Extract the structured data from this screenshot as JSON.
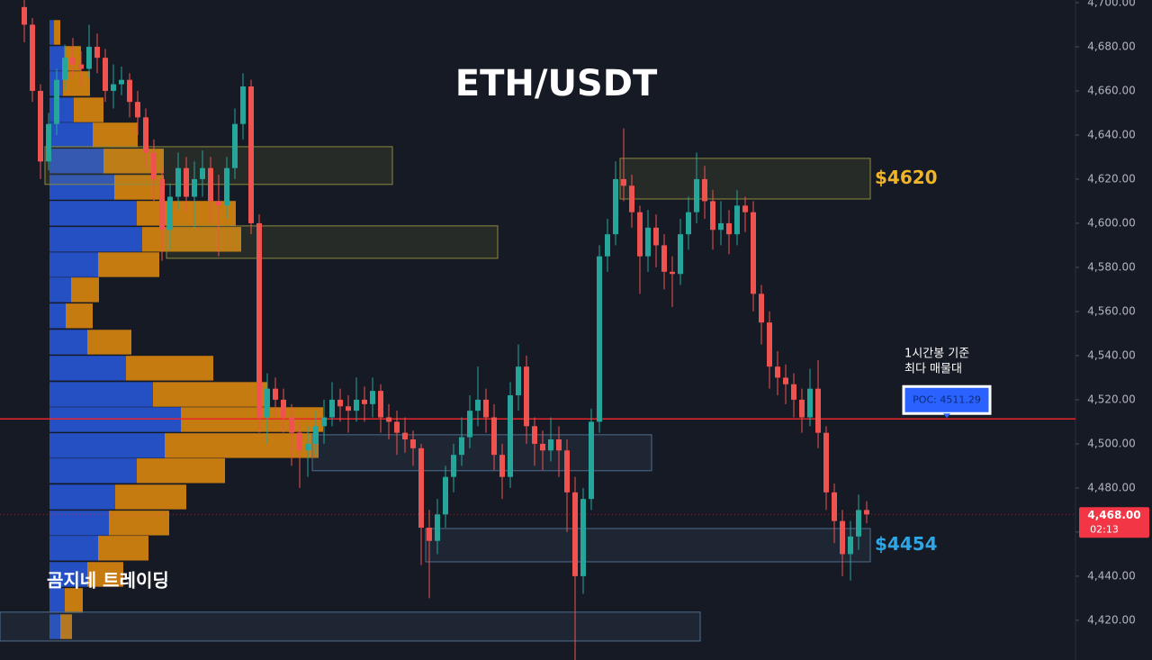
{
  "chart_data": {
    "type": "candlestick",
    "title": "ETH/USDT",
    "watermark": "곰지네 트레이딩",
    "ylim": [
      4402,
      4701.2
    ],
    "yticks": [
      {
        "value": 4420,
        "label": "4,420.00"
      },
      {
        "value": 4440,
        "label": "4,440.00"
      },
      {
        "value": 4460,
        "label": "4,460.00"
      },
      {
        "value": 4480,
        "label": "4,480.00"
      },
      {
        "value": 4500,
        "label": "4,500.00"
      },
      {
        "value": 4520,
        "label": "4,520.00"
      },
      {
        "value": 4540,
        "label": "4,540.00"
      },
      {
        "value": 4560,
        "label": "4,560.00"
      },
      {
        "value": 4580,
        "label": "4,580.00"
      },
      {
        "value": 4600,
        "label": "4,600.00"
      },
      {
        "value": 4620,
        "label": "4,620.00"
      },
      {
        "value": 4640,
        "label": "4,640.00"
      },
      {
        "value": 4660,
        "label": "4,660.00"
      },
      {
        "value": 4680,
        "label": "4,680.00"
      },
      {
        "value": 4700,
        "label": "4,700.00"
      }
    ],
    "up_color": "#26a69a",
    "down_color": "#ef5350",
    "open": [
      4698,
      4690,
      4660,
      4628,
      4645,
      4665,
      4675,
      4672,
      4670,
      4680,
      4675,
      4660,
      4663,
      4665,
      4655,
      4648,
      4632,
      4620,
      4597,
      4612,
      4625,
      4612,
      4620,
      4625,
      4610,
      4608,
      4625,
      4645,
      4662,
      4600,
      4512,
      4525,
      4520,
      4512,
      4505,
      4497,
      4500,
      4508,
      4512,
      4520,
      4517,
      4515,
      4520,
      4518,
      4524,
      4512,
      4510,
      4505,
      4502,
      4498,
      4462,
      4456,
      4468,
      4485,
      4495,
      4503,
      4515,
      4520,
      4512,
      4495,
      4485,
      4522,
      4535,
      4508,
      4500,
      4497,
      4502,
      4497,
      4478,
      4440,
      4475,
      4510,
      4585,
      4595,
      4620,
      4617,
      4605,
      4585,
      4598,
      4590,
      4578,
      4577,
      4595,
      4605,
      4620,
      4610,
      4597,
      4600,
      4595,
      4608,
      4605,
      4568,
      4555,
      4535,
      4530,
      4527,
      4520,
      4512,
      4525,
      4505,
      4478,
      4465,
      4450,
      4458,
      4470
    ],
    "high": [
      4704,
      4693,
      4663,
      4650,
      4670,
      4681,
      4684,
      4678,
      4690,
      4686,
      4679,
      4672,
      4671,
      4668,
      4660,
      4652,
      4638,
      4625,
      4618,
      4632,
      4630,
      4628,
      4633,
      4630,
      4622,
      4630,
      4652,
      4668,
      4665,
      4604,
      4532,
      4530,
      4525,
      4518,
      4510,
      4508,
      4515,
      4520,
      4528,
      4525,
      4522,
      4530,
      4526,
      4530,
      4527,
      4518,
      4515,
      4512,
      4506,
      4500,
      4470,
      4475,
      4490,
      4500,
      4512,
      4522,
      4535,
      4525,
      4518,
      4500,
      4528,
      4545,
      4540,
      4512,
      4506,
      4512,
      4508,
      4502,
      4485,
      4480,
      4516,
      4590,
      4602,
      4628,
      4643,
      4622,
      4608,
      4606,
      4604,
      4595,
      4585,
      4602,
      4612,
      4632,
      4626,
      4615,
      4610,
      4606,
      4615,
      4612,
      4610,
      4572,
      4560,
      4542,
      4536,
      4532,
      4525,
      4534,
      4538,
      4508,
      4482,
      4470,
      4465,
      4477,
      4474
    ],
    "low": [
      4682,
      4655,
      4620,
      4624,
      4640,
      4660,
      4666,
      4662,
      4666,
      4668,
      4655,
      4652,
      4658,
      4648,
      4640,
      4625,
      4610,
      4583,
      4588,
      4606,
      4605,
      4598,
      4612,
      4600,
      4585,
      4602,
      4620,
      4638,
      4595,
      4505,
      4500,
      4512,
      4505,
      4490,
      4480,
      4485,
      4495,
      4500,
      4508,
      4510,
      4505,
      4510,
      4510,
      4512,
      4505,
      4502,
      4495,
      4496,
      4490,
      4445,
      4430,
      4450,
      4462,
      4478,
      4490,
      4498,
      4508,
      4505,
      4488,
      4475,
      4480,
      4515,
      4500,
      4490,
      4488,
      4492,
      4485,
      4460,
      4402,
      4432,
      4470,
      4505,
      4578,
      4590,
      4610,
      4598,
      4568,
      4578,
      4580,
      4570,
      4562,
      4572,
      4588,
      4600,
      4602,
      4588,
      4590,
      4586,
      4590,
      4596,
      4560,
      4545,
      4525,
      4522,
      4518,
      4512,
      4505,
      4508,
      4498,
      4470,
      4455,
      4440,
      4438,
      4452,
      4464
    ],
    "close": [
      4690,
      4660,
      4628,
      4645,
      4665,
      4675,
      4672,
      4670,
      4680,
      4675,
      4660,
      4663,
      4665,
      4655,
      4648,
      4632,
      4620,
      4597,
      4612,
      4625,
      4612,
      4620,
      4625,
      4610,
      4608,
      4625,
      4645,
      4662,
      4600,
      4512,
      4525,
      4520,
      4512,
      4505,
      4497,
      4500,
      4508,
      4512,
      4520,
      4517,
      4515,
      4520,
      4518,
      4524,
      4512,
      4510,
      4505,
      4502,
      4498,
      4462,
      4456,
      4468,
      4485,
      4495,
      4503,
      4515,
      4520,
      4512,
      4495,
      4485,
      4522,
      4535,
      4508,
      4500,
      4497,
      4502,
      4497,
      4478,
      4440,
      4475,
      4510,
      4585,
      4595,
      4620,
      4617,
      4605,
      4585,
      4598,
      4590,
      4578,
      4577,
      4595,
      4605,
      4620,
      4610,
      4597,
      4600,
      4595,
      4608,
      4605,
      4568,
      4555,
      4535,
      4530,
      4527,
      4520,
      4512,
      4525,
      4505,
      4478,
      4465,
      4450,
      4458,
      4470,
      4468
    ],
    "volume_profile": {
      "levels": [
        4686.5,
        4674.7,
        4663.3,
        4651.4,
        4640.0,
        4628.2,
        4616.3,
        4604.5,
        4592.7,
        4581.2,
        4569.8,
        4558.0,
        4546.1,
        4534.3,
        4522.4,
        4511.0,
        4499.2,
        4487.8,
        4475.9,
        4464.1,
        4452.7,
        4440.8,
        4429.0,
        4417.1
      ],
      "buy": [
        5,
        17,
        15,
        27,
        48,
        60,
        72,
        97,
        103,
        54,
        24,
        18,
        42,
        85,
        115,
        146,
        128,
        97,
        73,
        66,
        54,
        42,
        17,
        12
      ],
      "sell": [
        7,
        18,
        30,
        33,
        50,
        67,
        55,
        110,
        110,
        68,
        31,
        30,
        49,
        97,
        127,
        158,
        171,
        98,
        79,
        67,
        56,
        40,
        20,
        13
      ],
      "buy_color": "#2757d6",
      "sell_color": "#d9860f"
    },
    "zones": [
      {
        "start": 3,
        "end": 45,
        "top": 4634.7,
        "bottom": 4617.6,
        "color": "#8c8a3e"
      },
      {
        "start": 18,
        "end": 58,
        "top": 4598.8,
        "bottom": 4584.1,
        "color": "#8c8a3e"
      },
      {
        "start": 74,
        "end": 104,
        "top": 4629.4,
        "bottom": 4611.0,
        "color": "#8c8a3e",
        "label": "$4620",
        "label_color": "#f0b429"
      },
      {
        "start": 36,
        "end": 77,
        "top": 4504.1,
        "bottom": 4487.8,
        "color": "#4f6d8c"
      },
      {
        "start": 50,
        "end": 104,
        "top": 4461.6,
        "bottom": 4446.5,
        "color": "#4f6d8c",
        "label": "$4454",
        "label_color": "#2ea6e6"
      },
      {
        "start": -3,
        "end": 83,
        "top": 4423.7,
        "bottom": 4410.6,
        "color": "#4f6d8c"
      }
    ],
    "poc": {
      "value": 4511.29,
      "label": "POC: 4511.29",
      "color": "#e8262b"
    },
    "annotation": [
      "1시간봉 기준",
      "최다 매물대"
    ],
    "current_price": {
      "value": 4468,
      "label": "4,468.00",
      "countdown": "02:13",
      "color": "#f23645"
    }
  }
}
